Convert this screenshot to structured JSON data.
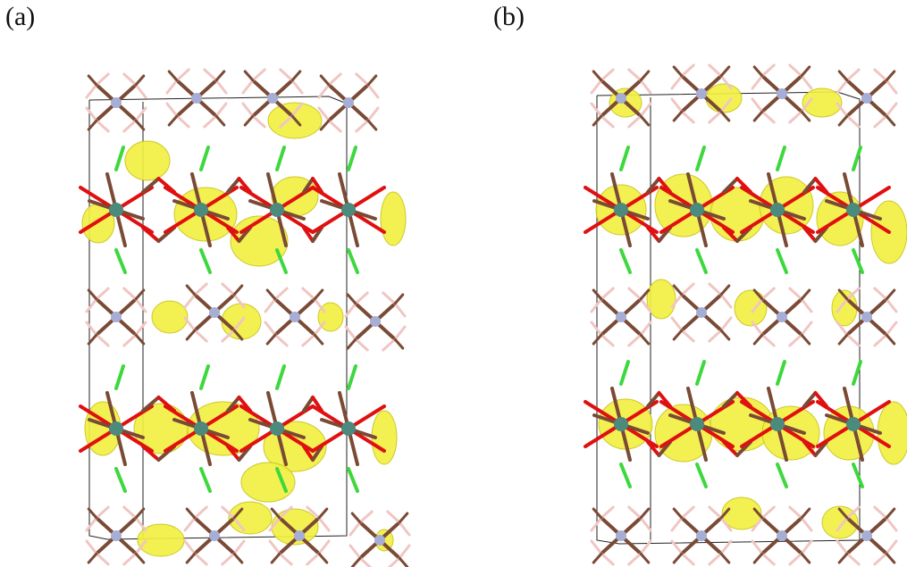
{
  "labels": {
    "panel_a": "(a)",
    "panel_b": "(b)"
  },
  "colors": {
    "isosurface": "#f2f043",
    "isosurface_edge": "#c9c41a",
    "carbon": "#7a4a35",
    "oxygen": "#e01010",
    "chlorine": "#3ed83e",
    "hydrogen": "#efc6c3",
    "nitrogen": "#a6aed6",
    "metal": "#4b8a7c",
    "cell_line": "#222222"
  }
}
